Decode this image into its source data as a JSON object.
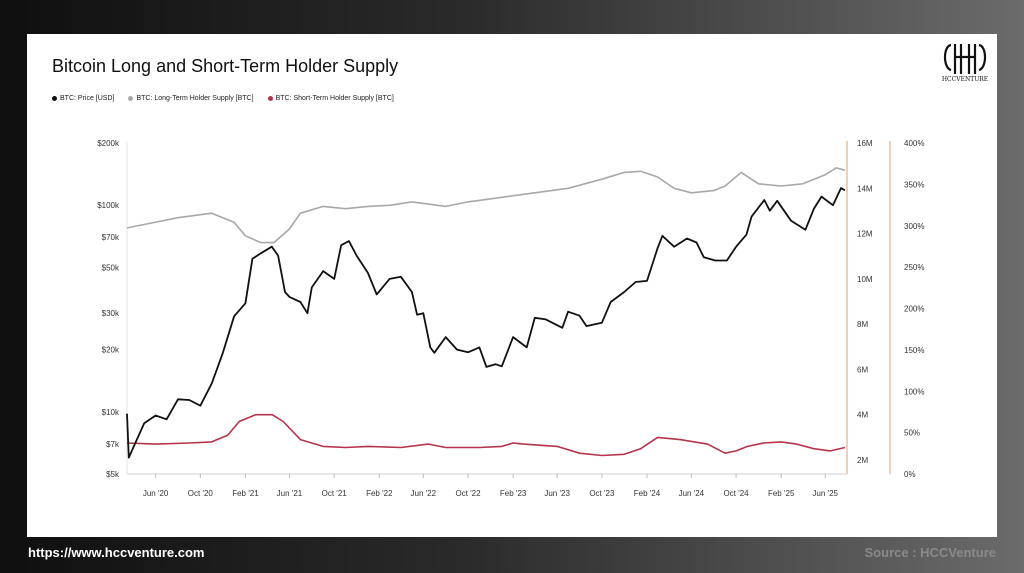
{
  "footer": {
    "url": "https://www.hccventure.com",
    "source": "Source : HCCVenture"
  },
  "logo": {
    "text": "HCCVENTURE",
    "icon": "hcc-monogram-icon"
  },
  "colors": {
    "price": "#111111",
    "lth": "#a8a8a8",
    "sth": "#b5344a",
    "right_axis_line": "#d9a27a"
  },
  "chart_data": {
    "type": "line",
    "title": "Bitcoin Long and Short-Term Holder Supply",
    "legend_position": "top-left",
    "grid": false,
    "x_ticks": [
      "Jun '20",
      "Oct '20",
      "Feb '21",
      "Jun '21",
      "Oct '21",
      "Feb '22",
      "Jun '22",
      "Oct '22",
      "Feb '23",
      "Jun '23",
      "Oct '23",
      "Feb '24",
      "Jun '24",
      "Oct '24",
      "Feb '25",
      "Jun '25"
    ],
    "y_left": {
      "scale": "log",
      "ticks": [
        "$200k",
        "$100k",
        "$70k",
        "$50k",
        "$30k",
        "$20k",
        "$10k",
        "$7k",
        "$5k"
      ],
      "tick_values": [
        200000,
        100000,
        70000,
        50000,
        30000,
        20000,
        10000,
        7000,
        5000
      ],
      "range": [
        5000,
        200000
      ]
    },
    "y_right1": {
      "ticks": [
        "16M",
        "14M",
        "12M",
        "10M",
        "8M",
        "6M",
        "4M",
        "2M"
      ],
      "tick_values": [
        16,
        14,
        12,
        10,
        8,
        6,
        4,
        2
      ],
      "range": [
        2,
        16
      ],
      "unit": "M BTC"
    },
    "y_right2": {
      "ticks": [
        "400%",
        "350%",
        "300%",
        "250%",
        "200%",
        "150%",
        "100%",
        "50%",
        "0%"
      ],
      "tick_values": [
        400,
        350,
        300,
        250,
        200,
        150,
        100,
        50,
        0
      ],
      "range": [
        0,
        400
      ]
    },
    "x_range": [
      "2020-03-15",
      "2025-07-25"
    ],
    "series": [
      {
        "name": "BTC: Price [USD]",
        "axis": "left",
        "points": [
          [
            "2020-03-15",
            9800
          ],
          [
            "2020-03-20",
            6000
          ],
          [
            "2020-04-01",
            6700
          ],
          [
            "2020-05-01",
            8800
          ],
          [
            "2020-06-01",
            9600
          ],
          [
            "2020-07-01",
            9200
          ],
          [
            "2020-08-01",
            11500
          ],
          [
            "2020-09-01",
            11400
          ],
          [
            "2020-10-01",
            10700
          ],
          [
            "2020-11-01",
            13700
          ],
          [
            "2020-12-01",
            19200
          ],
          [
            "2021-01-01",
            29000
          ],
          [
            "2021-02-01",
            33500
          ],
          [
            "2021-02-20",
            55000
          ],
          [
            "2021-03-15",
            58500
          ],
          [
            "2021-04-14",
            63000
          ],
          [
            "2021-05-01",
            57000
          ],
          [
            "2021-05-20",
            38000
          ],
          [
            "2021-06-01",
            36000
          ],
          [
            "2021-07-01",
            34000
          ],
          [
            "2021-07-20",
            30000
          ],
          [
            "2021-08-01",
            40000
          ],
          [
            "2021-09-01",
            48000
          ],
          [
            "2021-10-01",
            44000
          ],
          [
            "2021-10-20",
            64000
          ],
          [
            "2021-11-10",
            67000
          ],
          [
            "2021-12-01",
            57000
          ],
          [
            "2022-01-01",
            47000
          ],
          [
            "2022-01-25",
            37000
          ],
          [
            "2022-03-01",
            44000
          ],
          [
            "2022-04-01",
            45000
          ],
          [
            "2022-05-01",
            38000
          ],
          [
            "2022-05-15",
            29500
          ],
          [
            "2022-06-01",
            30000
          ],
          [
            "2022-06-20",
            20500
          ],
          [
            "2022-07-01",
            19300
          ],
          [
            "2022-08-01",
            23000
          ],
          [
            "2022-09-01",
            20000
          ],
          [
            "2022-10-01",
            19400
          ],
          [
            "2022-11-01",
            20500
          ],
          [
            "2022-11-20",
            16500
          ],
          [
            "2022-12-15",
            17000
          ],
          [
            "2023-01-01",
            16600
          ],
          [
            "2023-02-01",
            23000
          ],
          [
            "2023-03-10",
            20500
          ],
          [
            "2023-04-01",
            28500
          ],
          [
            "2023-05-01",
            28000
          ],
          [
            "2023-06-15",
            25500
          ],
          [
            "2023-07-01",
            30500
          ],
          [
            "2023-08-01",
            29200
          ],
          [
            "2023-08-20",
            26000
          ],
          [
            "2023-09-15",
            26600
          ],
          [
            "2023-10-01",
            27000
          ],
          [
            "2023-10-25",
            34000
          ],
          [
            "2023-12-01",
            38000
          ],
          [
            "2024-01-01",
            42500
          ],
          [
            "2024-02-01",
            43000
          ],
          [
            "2024-03-01",
            62000
          ],
          [
            "2024-03-14",
            71000
          ],
          [
            "2024-04-15",
            63000
          ],
          [
            "2024-05-20",
            69000
          ],
          [
            "2024-06-15",
            66000
          ],
          [
            "2024-07-05",
            56000
          ],
          [
            "2024-08-05",
            54000
          ],
          [
            "2024-09-06",
            54000
          ],
          [
            "2024-10-01",
            63000
          ],
          [
            "2024-10-29",
            72000
          ],
          [
            "2024-11-12",
            88000
          ],
          [
            "2024-12-17",
            106000
          ],
          [
            "2025-01-01",
            94000
          ],
          [
            "2025-01-21",
            105000
          ],
          [
            "2025-02-28",
            84000
          ],
          [
            "2025-04-08",
            76000
          ],
          [
            "2025-05-01",
            96000
          ],
          [
            "2025-05-22",
            110000
          ],
          [
            "2025-06-22",
            100000
          ],
          [
            "2025-07-14",
            121000
          ],
          [
            "2025-07-25",
            118000
          ]
        ]
      },
      {
        "name": "BTC: Long-Term Holder Supply [BTC]",
        "axis": "right1",
        "points": [
          [
            "2020-03-15",
            12.25
          ],
          [
            "2020-05-01",
            12.4
          ],
          [
            "2020-08-01",
            12.7
          ],
          [
            "2020-11-01",
            12.9
          ],
          [
            "2021-01-01",
            12.5
          ],
          [
            "2021-02-01",
            11.9
          ],
          [
            "2021-03-15",
            11.6
          ],
          [
            "2021-04-20",
            11.6
          ],
          [
            "2021-06-01",
            12.2
          ],
          [
            "2021-07-01",
            12.9
          ],
          [
            "2021-09-01",
            13.2
          ],
          [
            "2021-11-01",
            13.1
          ],
          [
            "2022-01-01",
            13.2
          ],
          [
            "2022-03-01",
            13.25
          ],
          [
            "2022-05-01",
            13.4
          ],
          [
            "2022-06-15",
            13.3
          ],
          [
            "2022-08-01",
            13.2
          ],
          [
            "2022-10-01",
            13.4
          ],
          [
            "2023-01-01",
            13.6
          ],
          [
            "2023-04-01",
            13.8
          ],
          [
            "2023-07-01",
            14.0
          ],
          [
            "2023-10-01",
            14.4
          ],
          [
            "2023-12-01",
            14.7
          ],
          [
            "2024-01-15",
            14.75
          ],
          [
            "2024-03-01",
            14.5
          ],
          [
            "2024-04-15",
            14.0
          ],
          [
            "2024-06-01",
            13.8
          ],
          [
            "2024-08-01",
            13.9
          ],
          [
            "2024-09-01",
            14.1
          ],
          [
            "2024-10-15",
            14.7
          ],
          [
            "2024-12-01",
            14.2
          ],
          [
            "2025-02-01",
            14.1
          ],
          [
            "2025-04-01",
            14.2
          ],
          [
            "2025-06-01",
            14.6
          ],
          [
            "2025-07-01",
            14.9
          ],
          [
            "2025-07-25",
            14.8
          ]
        ]
      },
      {
        "name": "BTC: Short-Term Holder Supply [BTC]",
        "axis": "right1",
        "points": [
          [
            "2020-03-15",
            2.75
          ],
          [
            "2020-06-01",
            2.7
          ],
          [
            "2020-09-01",
            2.75
          ],
          [
            "2020-11-01",
            2.8
          ],
          [
            "2020-12-15",
            3.1
          ],
          [
            "2021-01-15",
            3.7
          ],
          [
            "2021-03-01",
            4.0
          ],
          [
            "2021-04-15",
            4.0
          ],
          [
            "2021-05-15",
            3.7
          ],
          [
            "2021-07-01",
            2.9
          ],
          [
            "2021-09-01",
            2.6
          ],
          [
            "2021-11-01",
            2.55
          ],
          [
            "2022-01-01",
            2.6
          ],
          [
            "2022-04-01",
            2.55
          ],
          [
            "2022-06-15",
            2.7
          ],
          [
            "2022-08-01",
            2.55
          ],
          [
            "2022-11-01",
            2.55
          ],
          [
            "2023-01-01",
            2.6
          ],
          [
            "2023-02-01",
            2.75
          ],
          [
            "2023-03-01",
            2.7
          ],
          [
            "2023-06-01",
            2.6
          ],
          [
            "2023-08-01",
            2.3
          ],
          [
            "2023-10-01",
            2.2
          ],
          [
            "2023-12-01",
            2.25
          ],
          [
            "2024-01-15",
            2.5
          ],
          [
            "2024-03-01",
            3.0
          ],
          [
            "2024-05-01",
            2.9
          ],
          [
            "2024-07-15",
            2.7
          ],
          [
            "2024-09-01",
            2.3
          ],
          [
            "2024-10-01",
            2.4
          ],
          [
            "2024-11-01",
            2.6
          ],
          [
            "2024-12-15",
            2.75
          ],
          [
            "2025-02-01",
            2.8
          ],
          [
            "2025-03-15",
            2.7
          ],
          [
            "2025-05-01",
            2.5
          ],
          [
            "2025-06-15",
            2.4
          ],
          [
            "2025-07-25",
            2.55
          ]
        ]
      }
    ]
  }
}
